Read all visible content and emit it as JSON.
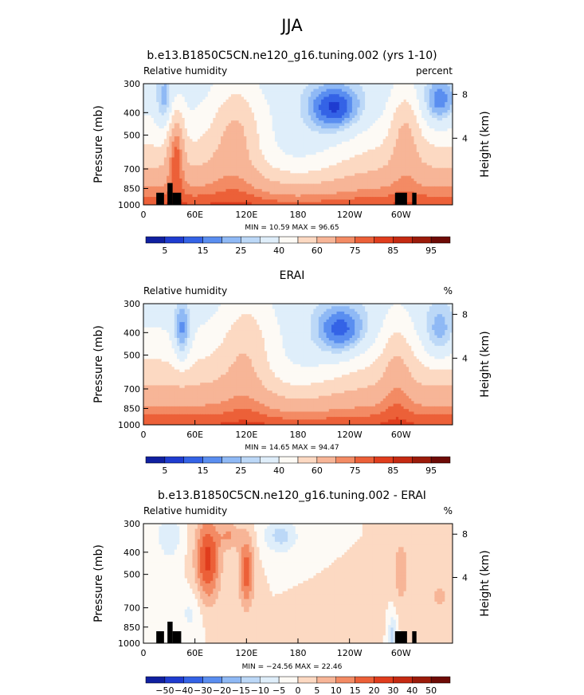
{
  "page_title": "JJA",
  "panels": [
    {
      "title": "b.e13.B1850C5CN.ne120_g16.tuning.002 (yrs 1-10)",
      "left_label": "Relative humidity",
      "units": "percent",
      "stats": "MIN =   10.59   MAX =   96.65",
      "min": 10.59,
      "max": 96.65,
      "kind": "model",
      "colorbar": {
        "labels": [
          "5",
          "15",
          "25",
          "40",
          "60",
          "75",
          "85",
          "95"
        ],
        "colors": [
          "#1020a0",
          "#1f3cd0",
          "#3463e6",
          "#5a8ef0",
          "#8fb9f5",
          "#bcd8f7",
          "#dfeefa",
          "#fdfaf5",
          "#fcd9c2",
          "#f7b597",
          "#f38b64",
          "#ec6038",
          "#e03d1d",
          "#c52a12",
          "#9b1b0a",
          "#6e0b06"
        ]
      }
    },
    {
      "title": "ERAI",
      "left_label": "Relative humidity",
      "units": "%",
      "stats": "MIN =   14.65   MAX =   94.47",
      "min": 14.65,
      "max": 94.47,
      "kind": "obs",
      "colorbar": {
        "labels": [
          "5",
          "15",
          "25",
          "40",
          "60",
          "75",
          "85",
          "95"
        ],
        "colors": [
          "#1020a0",
          "#1f3cd0",
          "#3463e6",
          "#5a8ef0",
          "#8fb9f5",
          "#bcd8f7",
          "#dfeefa",
          "#fdfaf5",
          "#fcd9c2",
          "#f7b597",
          "#f38b64",
          "#ec6038",
          "#e03d1d",
          "#c52a12",
          "#9b1b0a",
          "#6e0b06"
        ]
      }
    },
    {
      "title": "b.e13.B1850C5CN.ne120_g16.tuning.002 - ERAI",
      "left_label": "Relative humidity",
      "units": "%",
      "stats": "MIN = −24.56   MAX =   22.46",
      "min": -24.56,
      "max": 22.46,
      "kind": "diff",
      "colorbar": {
        "labels": [
          "−50",
          "−40",
          "−30",
          "−20",
          "−15",
          "−10",
          "−5",
          "0",
          "5",
          "10",
          "15",
          "20",
          "30",
          "40",
          "50"
        ],
        "colors": [
          "#1020a0",
          "#1f3cd0",
          "#3463e6",
          "#5a8ef0",
          "#8fb9f5",
          "#bcd8f7",
          "#dfeefa",
          "#fdfaf5",
          "#fcd9c2",
          "#f7b597",
          "#f38b64",
          "#ec6038",
          "#e03d1d",
          "#c52a12",
          "#9b1b0a",
          "#6e0b06"
        ]
      }
    }
  ],
  "chart_data": {
    "type": "heatmap",
    "x_tick_labels": [
      "0",
      "60E",
      "120E",
      "180",
      "120W",
      "60W"
    ],
    "x_tick_values_deg_east": [
      0,
      60,
      120,
      180,
      240,
      300
    ],
    "xlim_deg_east": [
      0,
      360
    ],
    "ylabel": "Pressure (mb)",
    "y_tick_labels": [
      "300",
      "400",
      "500",
      "700",
      "850",
      "1000"
    ],
    "y_tick_values": [
      300,
      400,
      500,
      700,
      850,
      1000
    ],
    "ylim": [
      300,
      1000
    ],
    "y_log_scale": true,
    "ylabel_right": "Height (km)",
    "right_tick_labels": [
      "8",
      "4"
    ],
    "right_tick_values_km": [
      8,
      4
    ]
  }
}
